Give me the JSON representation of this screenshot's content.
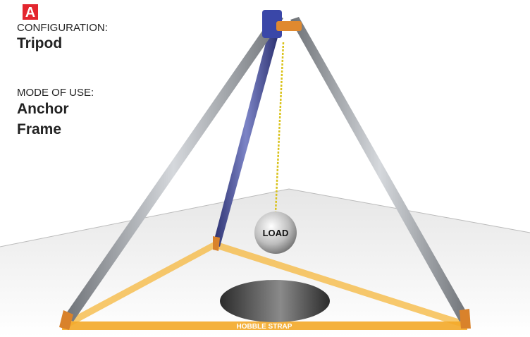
{
  "badge": "A",
  "configuration": {
    "label": "CONFIGURATION:",
    "value": "Tripod"
  },
  "mode": {
    "label": "MODE OF USE:",
    "value_lines": [
      "Anchor",
      "Frame"
    ]
  },
  "load": "LOAD",
  "strap": "HOBBLE STRAP"
}
